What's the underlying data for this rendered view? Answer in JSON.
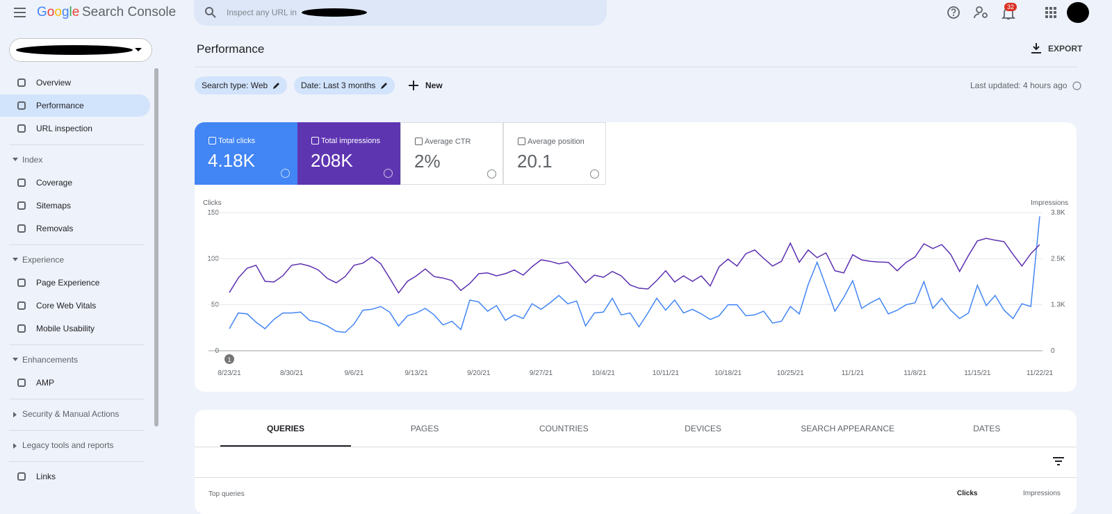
{
  "header": {
    "logo": "Google",
    "product": "Search Console",
    "search_placeholder": "Inspect any URL in",
    "notifications": "32"
  },
  "sidebar": {
    "top": [
      "Overview",
      "Performance",
      "URL inspection"
    ],
    "index": {
      "title": "Index",
      "items": [
        "Coverage",
        "Sitemaps",
        "Removals"
      ]
    },
    "experience": {
      "title": "Experience",
      "items": [
        "Page Experience",
        "Core Web Vitals",
        "Mobile Usability"
      ]
    },
    "enhancements": {
      "title": "Enhancements",
      "items": [
        "AMP"
      ]
    },
    "security": "Security & Manual Actions",
    "legacy": "Legacy tools and reports",
    "links": "Links"
  },
  "page": {
    "title": "Performance",
    "export": "EXPORT",
    "filters": [
      "Search type: Web",
      "Date: Last 3 months"
    ],
    "new": "New",
    "last_updated": "Last updated: 4 hours ago"
  },
  "metrics": [
    {
      "value": "4.18K"
    },
    {
      "value": "208K"
    },
    {
      "label": "Average CTR",
      "value": "2%"
    },
    {
      "label": "Average position",
      "value": "20.1"
    }
  ],
  "chart_data": {
    "type": "line",
    "ylabel": "Clicks",
    "y2label": "Impressions",
    "annotations": [
      "1"
    ],
    "categories": [
      "8/23/21",
      null,
      null,
      null,
      null,
      null,
      null,
      "8/30/21",
      null,
      null,
      null,
      null,
      null,
      null,
      "9/6/21",
      null,
      null,
      null,
      null,
      null,
      null,
      "9/13/21",
      null,
      null,
      null,
      null,
      null,
      null,
      "9/20/21",
      null,
      null,
      null,
      null,
      null,
      null,
      "9/27/21",
      null,
      null,
      null,
      null,
      null,
      null,
      "10/4/21",
      null,
      null,
      null,
      null,
      null,
      null,
      "10/11/21",
      null,
      null,
      null,
      null,
      null,
      null,
      "10/18/21",
      null,
      null,
      null,
      null,
      null,
      null,
      "10/25/21",
      null,
      null,
      null,
      null,
      null,
      null,
      "11/1/21",
      null,
      null,
      null,
      null,
      null,
      null,
      "11/8/21",
      null,
      null,
      null,
      null,
      null,
      null,
      "11/15/21",
      null,
      null,
      null,
      null,
      null,
      null,
      "11/22/21"
    ],
    "ylim": [
      0,
      150
    ],
    "yticks": [
      0,
      50,
      100,
      150
    ],
    "y2lim": [
      0,
      3800
    ],
    "y2ticks": [
      0,
      {
        "value": 1267,
        "label": "1.3K"
      },
      {
        "value": 2533,
        "label": "2.5K"
      },
      {
        "value": 3800,
        "label": "3.8K"
      }
    ],
    "grid": true,
    "series": [
      {
        "name": "Total clicks",
        "color": "#4285f4",
        "values": [
          24,
          41,
          40,
          31,
          24,
          34,
          41,
          41,
          42,
          33,
          31,
          27,
          21,
          20,
          29,
          44,
          45,
          48,
          42,
          27,
          38,
          41,
          46,
          39,
          28,
          32,
          23,
          55,
          53,
          43,
          49,
          33,
          39,
          35,
          51,
          45,
          52,
          60,
          51,
          54,
          27,
          41,
          42,
          57,
          39,
          41,
          26,
          41,
          57,
          44,
          55,
          41,
          45,
          40,
          34,
          38,
          50,
          50,
          38,
          39,
          43,
          30,
          32,
          48,
          40,
          72,
          96,
          70,
          43,
          58,
          76,
          46,
          52,
          57,
          40,
          44,
          50,
          52,
          75,
          46,
          57,
          44,
          35,
          41,
          71,
          49,
          60,
          44,
          35,
          51,
          48,
          146
        ]
      },
      {
        "name": "Total impressions",
        "color": "#5b2fb0",
        "axis": "y2",
        "values": [
          1600,
          2000,
          2270,
          2350,
          1910,
          1890,
          2060,
          2350,
          2390,
          2330,
          2220,
          1990,
          1870,
          2040,
          2350,
          2410,
          2580,
          2390,
          2000,
          1590,
          1910,
          2060,
          2250,
          2040,
          2000,
          1930,
          1660,
          1850,
          2120,
          2140,
          2060,
          2120,
          2220,
          2080,
          2310,
          2500,
          2460,
          2390,
          2440,
          2160,
          1870,
          2080,
          2020,
          2180,
          2060,
          1810,
          1720,
          1700,
          1930,
          2200,
          1890,
          2060,
          1910,
          2060,
          1780,
          2310,
          2520,
          2330,
          2670,
          2770,
          2540,
          2330,
          2460,
          2960,
          2430,
          2770,
          2560,
          2690,
          2200,
          2140,
          2640,
          2500,
          2460,
          2440,
          2430,
          2200,
          2430,
          2580,
          2940,
          2810,
          2920,
          2650,
          2180,
          2620,
          3020,
          3090,
          3040,
          3000,
          2650,
          2330,
          2670,
          2920
        ]
      }
    ]
  },
  "tabs": [
    "QUERIES",
    "PAGES",
    "COUNTRIES",
    "DEVICES",
    "SEARCH APPEARANCE",
    "DATES"
  ],
  "table": {
    "title": "Top queries",
    "columns": [
      "Clicks",
      "Impressions"
    ]
  }
}
